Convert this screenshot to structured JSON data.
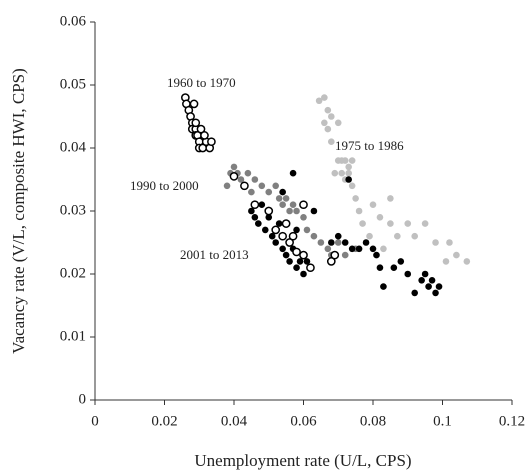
{
  "chart_data": {
    "type": "scatter",
    "xlabel": "Unemployment rate (U/L, CPS)",
    "ylabel": "Vacancy rate (V/L, composite HWI, CPS)",
    "xlim": [
      0,
      0.12
    ],
    "xticks": [
      0,
      0.02,
      0.04,
      0.06,
      0.08,
      0.1,
      0.12
    ],
    "ylim": [
      0,
      0.06
    ],
    "yticks": [
      0,
      0.01,
      0.02,
      0.03,
      0.04,
      0.05,
      0.06
    ],
    "series": [
      {
        "name": "1960 to 1970",
        "color": "#000000",
        "filled": false,
        "x": [
          0.026,
          0.0263,
          0.027,
          0.0275,
          0.028,
          0.028,
          0.029,
          0.029,
          0.0295,
          0.03,
          0.03,
          0.031,
          0.032,
          0.033,
          0.0335,
          0.029,
          0.0285,
          0.0305,
          0.0315,
          0.04,
          0.043,
          0.046,
          0.05,
          0.052,
          0.054,
          0.056,
          0.057,
          0.058,
          0.06,
          0.062,
          0.055,
          0.06,
          0.068,
          0.069
        ],
        "values": [
          0.048,
          0.047,
          0.046,
          0.045,
          0.044,
          0.043,
          0.043,
          0.042,
          0.042,
          0.041,
          0.04,
          0.04,
          0.041,
          0.04,
          0.041,
          0.044,
          0.047,
          0.043,
          0.042,
          0.0355,
          0.034,
          0.031,
          0.03,
          0.027,
          0.026,
          0.025,
          0.026,
          0.0235,
          0.023,
          0.021,
          0.028,
          0.031,
          0.022,
          0.023
        ]
      },
      {
        "name": "1975 to 1986",
        "color": "#c0c0c0",
        "filled": true,
        "x": [
          0.0645,
          0.066,
          0.067,
          0.068,
          0.07,
          0.066,
          0.067,
          0.068,
          0.07,
          0.071,
          0.072,
          0.073,
          0.074,
          0.071,
          0.069,
          0.072,
          0.073,
          0.074,
          0.075,
          0.076,
          0.077,
          0.08,
          0.082,
          0.085,
          0.085,
          0.087,
          0.09,
          0.092,
          0.095,
          0.098,
          0.101,
          0.102,
          0.104,
          0.107,
          0.079,
          0.083
        ],
        "values": [
          0.0475,
          0.048,
          0.046,
          0.045,
          0.044,
          0.044,
          0.043,
          0.041,
          0.038,
          0.038,
          0.038,
          0.037,
          0.038,
          0.036,
          0.036,
          0.035,
          0.036,
          0.034,
          0.032,
          0.03,
          0.028,
          0.031,
          0.029,
          0.032,
          0.028,
          0.026,
          0.028,
          0.026,
          0.028,
          0.025,
          0.022,
          0.025,
          0.023,
          0.022,
          0.026,
          0.024
        ]
      },
      {
        "name": "1990 to 2000",
        "color": "#808080",
        "filled": true,
        "x": [
          0.038,
          0.039,
          0.04,
          0.041,
          0.042,
          0.044,
          0.046,
          0.045,
          0.048,
          0.05,
          0.052,
          0.053,
          0.054,
          0.055,
          0.056,
          0.057,
          0.058,
          0.06,
          0.061,
          0.063,
          0.065,
          0.067,
          0.07,
          0.072,
          0.075,
          0.068
        ],
        "values": [
          0.034,
          0.036,
          0.037,
          0.036,
          0.035,
          0.036,
          0.035,
          0.033,
          0.034,
          0.033,
          0.034,
          0.032,
          0.031,
          0.032,
          0.03,
          0.031,
          0.03,
          0.029,
          0.027,
          0.026,
          0.025,
          0.024,
          0.025,
          0.023,
          0.024,
          0.023
        ]
      },
      {
        "name": "2001 to 2013",
        "color": "#000000",
        "filled": true,
        "x": [
          0.045,
          0.046,
          0.047,
          0.048,
          0.049,
          0.05,
          0.051,
          0.052,
          0.053,
          0.054,
          0.055,
          0.056,
          0.057,
          0.058,
          0.059,
          0.06,
          0.061,
          0.057,
          0.054,
          0.058,
          0.068,
          0.07,
          0.072,
          0.074,
          0.076,
          0.078,
          0.08,
          0.081,
          0.082,
          0.083,
          0.088,
          0.09,
          0.092,
          0.094,
          0.095,
          0.096,
          0.097,
          0.098,
          0.099,
          0.086,
          0.073,
          0.063
        ],
        "values": [
          0.03,
          0.029,
          0.028,
          0.031,
          0.027,
          0.029,
          0.026,
          0.025,
          0.028,
          0.024,
          0.023,
          0.022,
          0.024,
          0.021,
          0.022,
          0.02,
          0.022,
          0.036,
          0.033,
          0.027,
          0.025,
          0.026,
          0.025,
          0.024,
          0.024,
          0.025,
          0.024,
          0.023,
          0.021,
          0.018,
          0.022,
          0.02,
          0.017,
          0.019,
          0.02,
          0.018,
          0.019,
          0.017,
          0.018,
          0.021,
          0.035,
          0.03
        ]
      }
    ]
  }
}
